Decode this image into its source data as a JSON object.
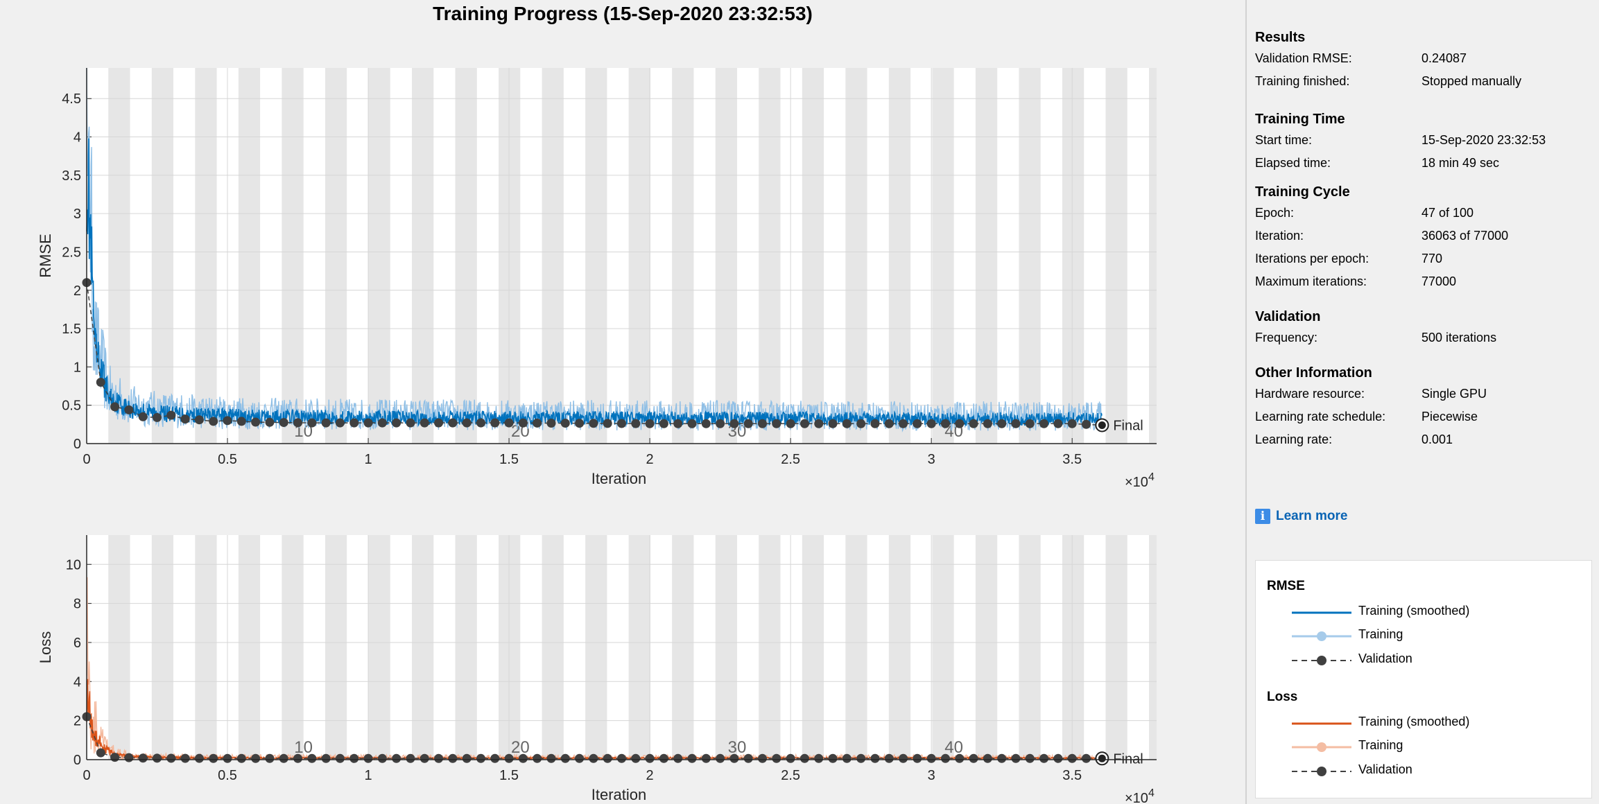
{
  "title": "Training Progress (15-Sep-2020 23:32:53)",
  "top_chart": {
    "ylabel": "RMSE",
    "xlabel": "Iteration",
    "exponent_label": "×10",
    "exponent_power": "4",
    "final_label": "Final",
    "yticks": [
      "0",
      "0.5",
      "1",
      "1.5",
      "2",
      "2.5",
      "3",
      "3.5",
      "4",
      "4.5"
    ],
    "xticks": [
      "0",
      "0.5",
      "1",
      "1.5",
      "2",
      "2.5",
      "3",
      "3.5"
    ],
    "epoch_labels": [
      "10",
      "20",
      "30",
      "40"
    ]
  },
  "bottom_chart": {
    "ylabel": "Loss",
    "xlabel": "Iteration",
    "exponent_label": "×10",
    "exponent_power": "4",
    "final_label": "Final",
    "yticks": [
      "0",
      "2",
      "4",
      "6",
      "8",
      "10"
    ],
    "xticks": [
      "0",
      "0.5",
      "1",
      "1.5",
      "2",
      "2.5",
      "3",
      "3.5"
    ],
    "epoch_labels": [
      "10",
      "20",
      "30",
      "40"
    ]
  },
  "chart_data": [
    {
      "type": "line",
      "ylabel": "RMSE",
      "xlabel": "Iteration",
      "xlim": [
        0,
        38000
      ],
      "ylim": [
        0,
        4.9
      ],
      "iterations_per_epoch": 770,
      "colors": {
        "smoothed": "#0072bd",
        "raw": "#8fbfe6",
        "validation": "#404040"
      },
      "series": [
        {
          "name": "Training (smoothed)",
          "x": [
            0,
            300,
            800,
            1500,
            2500,
            4000,
            6000,
            10000,
            20000,
            30000,
            36063
          ],
          "y": [
            3.8,
            1.2,
            0.6,
            0.45,
            0.4,
            0.37,
            0.35,
            0.34,
            0.33,
            0.32,
            0.32
          ]
        },
        {
          "name": "Validation",
          "x": [
            0,
            500,
            1000,
            1500,
            2000,
            2500,
            3000,
            3500,
            4000,
            4500,
            5000,
            6000,
            8000,
            10000,
            15000,
            20000,
            25000,
            30000,
            35000,
            36063
          ],
          "y": [
            2.1,
            0.8,
            0.48,
            0.44,
            0.35,
            0.34,
            0.37,
            0.32,
            0.31,
            0.29,
            0.3,
            0.28,
            0.27,
            0.27,
            0.27,
            0.26,
            0.26,
            0.26,
            0.26,
            0.24
          ]
        }
      ]
    },
    {
      "type": "line",
      "ylabel": "Loss",
      "xlabel": "Iteration",
      "xlim": [
        0,
        38000
      ],
      "ylim": [
        0,
        11.5
      ],
      "iterations_per_epoch": 770,
      "colors": {
        "smoothed": "#d95319",
        "raw": "#f4b89c",
        "validation": "#404040"
      },
      "series": [
        {
          "name": "Training (smoothed)",
          "x": [
            0,
            200,
            600,
            1000,
            2000,
            4000,
            10000,
            20000,
            36063
          ],
          "y": [
            3.5,
            1.5,
            0.6,
            0.25,
            0.12,
            0.09,
            0.08,
            0.08,
            0.08
          ]
        },
        {
          "name": "Validation",
          "x": [
            0,
            500,
            1000,
            2000,
            3000,
            5000,
            10000,
            20000,
            30000,
            36063
          ],
          "y": [
            2.2,
            0.35,
            0.12,
            0.08,
            0.07,
            0.06,
            0.06,
            0.06,
            0.06,
            0.06
          ]
        }
      ]
    }
  ],
  "panel": {
    "sections": [
      {
        "title": "Results",
        "rows": [
          {
            "label": "Validation RMSE:",
            "value": "0.24087"
          },
          {
            "label": "Training finished:",
            "value": "Stopped manually"
          }
        ]
      },
      {
        "title": "Training Time",
        "rows": [
          {
            "label": "Start time:",
            "value": "15-Sep-2020 23:32:53"
          },
          {
            "label": "Elapsed time:",
            "value": "18 min 49 sec"
          }
        ]
      },
      {
        "title": "Training Cycle",
        "rows": [
          {
            "label": "Epoch:",
            "value": "47 of 100"
          },
          {
            "label": "Iteration:",
            "value": "36063 of 77000"
          },
          {
            "label": "Iterations per epoch:",
            "value": "770"
          },
          {
            "label": "Maximum iterations:",
            "value": "77000"
          }
        ]
      },
      {
        "title": "Validation",
        "rows": [
          {
            "label": "Frequency:",
            "value": "500 iterations"
          }
        ]
      },
      {
        "title": "Other Information",
        "rows": [
          {
            "label": "Hardware resource:",
            "value": "Single GPU"
          },
          {
            "label": "Learning rate schedule:",
            "value": "Piecewise"
          },
          {
            "label": "Learning rate:",
            "value": "0.001"
          }
        ]
      }
    ],
    "learn_more": "Learn more",
    "info_icon": "info-icon"
  },
  "legend": {
    "rmse_title": "RMSE",
    "loss_title": "Loss",
    "items": {
      "smoothed": "Training (smoothed)",
      "training": "Training",
      "validation": "Validation"
    }
  }
}
